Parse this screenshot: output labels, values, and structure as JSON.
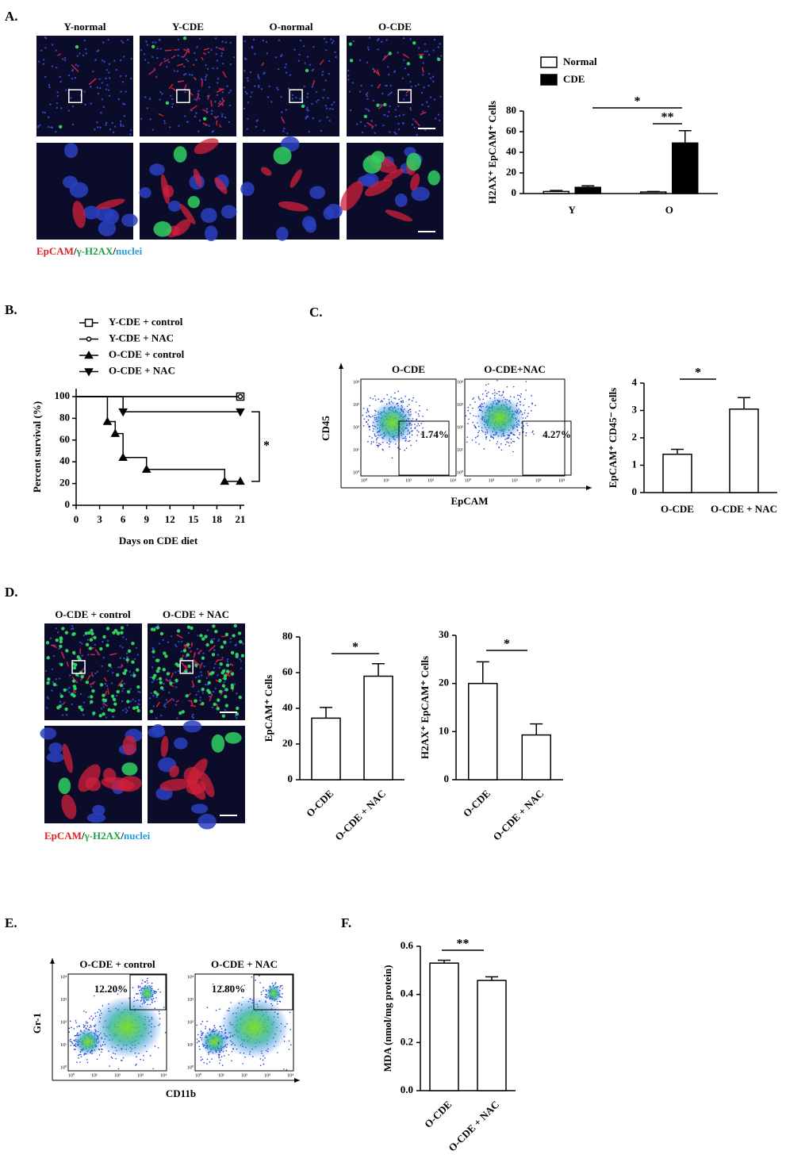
{
  "panel_labels": [
    "A.",
    "B.",
    "C.",
    "D.",
    "E.",
    "F."
  ],
  "panel_a": {
    "image_titles": [
      "Y-normal",
      "Y-CDE",
      "O-normal",
      "O-CDE"
    ],
    "stain_legend": {
      "epcam": "EpCAM",
      "separator": "/",
      "h2ax": "γ-H2AX",
      "nuclei": "nuclei"
    }
  },
  "panel_c_flow": {
    "titles": [
      "O-CDE",
      "O-CDE+NAC"
    ],
    "gates": [
      "1.74%",
      "4.27%"
    ],
    "y_label": "CD45",
    "x_label": "EpCAM"
  },
  "panel_d": {
    "image_titles": [
      "O-CDE + control",
      "O-CDE + NAC"
    ]
  },
  "panel_e_flow": {
    "titles": [
      "O-CDE + control",
      "O-CDE + NAC"
    ],
    "gates": [
      "12.20%",
      "12.80%"
    ],
    "y_label": "Gr-1",
    "x_label": "CD11b"
  },
  "flow_ticks": [
    "10⁰",
    "10¹",
    "10²",
    "10³",
    "10⁴"
  ],
  "chart_data": [
    {
      "type": "bar",
      "y_label": "H2AX⁺ EpCAM⁺ Cells",
      "categories": [
        "Y",
        "O"
      ],
      "series": [
        {
          "name": "Normal",
          "color": "#ffffff",
          "values": [
            2,
            1.5
          ],
          "errors": [
            1,
            0.5
          ]
        },
        {
          "name": "CDE",
          "color": "#000000",
          "values": [
            6,
            49
          ],
          "errors": [
            1.5,
            12
          ]
        }
      ],
      "ylim": [
        0,
        80
      ],
      "yticks": [
        0,
        20,
        40,
        60,
        80
      ],
      "annotations": [
        "*",
        "**"
      ]
    },
    {
      "type": "line",
      "step": true,
      "x_label": "Days on CDE diet",
      "y_label": "Percent survival (%)",
      "series": [
        {
          "name": "Y-CDE + control",
          "marker": "square",
          "color": "#000000",
          "x": [
            0,
            21
          ],
          "values": [
            100,
            100
          ]
        },
        {
          "name": "Y-CDE + NAC",
          "marker": "circle",
          "color": "#000000",
          "x": [
            0,
            21
          ],
          "values": [
            100,
            100
          ]
        },
        {
          "name": "O-CDE + control",
          "marker": "triangle-up",
          "color": "#000000",
          "x": [
            0,
            4,
            5,
            6,
            9,
            19,
            21
          ],
          "values": [
            100,
            77,
            66,
            44,
            33,
            22,
            22
          ]
        },
        {
          "name": "O-CDE + NAC",
          "marker": "triangle-down",
          "color": "#000000",
          "x": [
            0,
            6,
            21
          ],
          "values": [
            100,
            86,
            86
          ]
        }
      ],
      "xlim": [
        0,
        21
      ],
      "xticks": [
        0,
        3,
        6,
        9,
        12,
        15,
        18,
        21
      ],
      "ylim": [
        0,
        100
      ],
      "yticks": [
        0,
        20,
        40,
        60,
        80,
        100
      ],
      "annotations": [
        "*"
      ]
    },
    {
      "type": "bar",
      "y_label": "EpCAM⁺ CD45⁻ Cells",
      "categories": [
        "O-CDE",
        "O-CDE + NAC"
      ],
      "color": "#ffffff",
      "values": [
        1.4,
        3.05
      ],
      "errors": [
        0.18,
        0.42
      ],
      "ylim": [
        0,
        4
      ],
      "yticks": [
        0,
        1,
        2,
        3,
        4
      ],
      "annotations": [
        "*"
      ]
    },
    {
      "type": "bar",
      "y_label": "EpCAM⁺ Cells",
      "categories": [
        "O-CDE",
        "O-CDE + NAC"
      ],
      "color": "#ffffff",
      "values": [
        34.5,
        58
      ],
      "errors": [
        6,
        7
      ],
      "ylim": [
        0,
        80
      ],
      "yticks": [
        0,
        20,
        40,
        60,
        80
      ],
      "annotations": [
        "*"
      ]
    },
    {
      "type": "bar",
      "y_label": "H2AX⁺ EpCAM⁺ Cells",
      "categories": [
        "O-CDE",
        "O-CDE + NAC"
      ],
      "color": "#ffffff",
      "values": [
        20,
        9.3
      ],
      "errors": [
        4.5,
        2.3
      ],
      "ylim": [
        0,
        30
      ],
      "yticks": [
        0,
        10,
        20,
        30
      ],
      "annotations": [
        "*"
      ]
    },
    {
      "type": "bar",
      "y_label": "MDA (nmol/mg protein)",
      "categories": [
        "O-CDE",
        "O-CDE + NAC"
      ],
      "color": "#ffffff",
      "values": [
        0.53,
        0.458
      ],
      "errors": [
        0.012,
        0.015
      ],
      "ylim": [
        0,
        0.6
      ],
      "yticks": [
        {
          "value": 0,
          "label": "0.0"
        },
        0.2,
        0.4,
        0.6
      ],
      "annotations": [
        "**"
      ]
    }
  ]
}
